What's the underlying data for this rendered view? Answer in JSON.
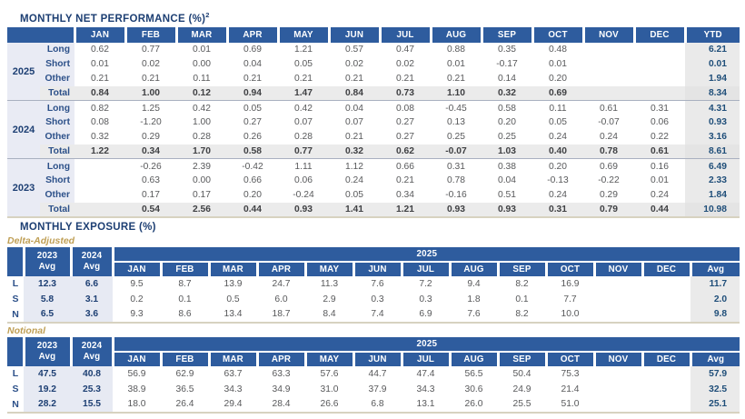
{
  "performance": {
    "title": "MONTHLY NET PERFORMANCE (%)",
    "title_sup": "2",
    "months": [
      "JAN",
      "FEB",
      "MAR",
      "APR",
      "MAY",
      "JUN",
      "JUL",
      "AUG",
      "SEP",
      "OCT",
      "NOV",
      "DEC"
    ],
    "ytd_label": "YTD",
    "groups": [
      {
        "year": "2025",
        "rows": [
          {
            "label": "Long",
            "values": [
              "0.62",
              "0.77",
              "0.01",
              "0.69",
              "1.21",
              "0.57",
              "0.47",
              "0.88",
              "0.35",
              "0.48",
              "",
              ""
            ],
            "ytd": "6.21"
          },
          {
            "label": "Short",
            "values": [
              "0.01",
              "0.02",
              "0.00",
              "0.04",
              "0.05",
              "0.02",
              "0.02",
              "0.01",
              "-0.17",
              "0.01",
              "",
              ""
            ],
            "ytd": "0.01"
          },
          {
            "label": "Other",
            "values": [
              "0.21",
              "0.21",
              "0.11",
              "0.21",
              "0.21",
              "0.21",
              "0.21",
              "0.21",
              "0.14",
              "0.20",
              "",
              ""
            ],
            "ytd": "1.94"
          },
          {
            "label": "Total",
            "values": [
              "0.84",
              "1.00",
              "0.12",
              "0.94",
              "1.47",
              "0.84",
              "0.73",
              "1.10",
              "0.32",
              "0.69",
              "",
              ""
            ],
            "ytd": "8.34"
          }
        ]
      },
      {
        "year": "2024",
        "rows": [
          {
            "label": "Long",
            "values": [
              "0.82",
              "1.25",
              "0.42",
              "0.05",
              "0.42",
              "0.04",
              "0.08",
              "-0.45",
              "0.58",
              "0.11",
              "0.61",
              "0.31"
            ],
            "ytd": "4.31"
          },
          {
            "label": "Short",
            "values": [
              "0.08",
              "-1.20",
              "1.00",
              "0.27",
              "0.07",
              "0.07",
              "0.27",
              "0.13",
              "0.20",
              "0.05",
              "-0.07",
              "0.06"
            ],
            "ytd": "0.93"
          },
          {
            "label": "Other",
            "values": [
              "0.32",
              "0.29",
              "0.28",
              "0.26",
              "0.28",
              "0.21",
              "0.27",
              "0.25",
              "0.25",
              "0.24",
              "0.24",
              "0.22"
            ],
            "ytd": "3.16"
          },
          {
            "label": "Total",
            "values": [
              "1.22",
              "0.34",
              "1.70",
              "0.58",
              "0.77",
              "0.32",
              "0.62",
              "-0.07",
              "1.03",
              "0.40",
              "0.78",
              "0.61"
            ],
            "ytd": "8.61"
          }
        ]
      },
      {
        "year": "2023",
        "rows": [
          {
            "label": "Long",
            "values": [
              "",
              "-0.26",
              "2.39",
              "-0.42",
              "1.11",
              "1.12",
              "0.66",
              "0.31",
              "0.38",
              "0.20",
              "0.69",
              "0.16"
            ],
            "ytd": "6.49"
          },
          {
            "label": "Short",
            "values": [
              "",
              "0.63",
              "0.00",
              "0.66",
              "0.06",
              "0.24",
              "0.21",
              "0.78",
              "0.04",
              "-0.13",
              "-0.22",
              "0.01"
            ],
            "ytd": "2.33"
          },
          {
            "label": "Other",
            "values": [
              "",
              "0.17",
              "0.17",
              "0.20",
              "-0.24",
              "0.05",
              "0.34",
              "-0.16",
              "0.51",
              "0.24",
              "0.29",
              "0.24"
            ],
            "ytd": "1.84"
          },
          {
            "label": "Total",
            "values": [
              "",
              "0.54",
              "2.56",
              "0.44",
              "0.93",
              "1.41",
              "1.21",
              "0.93",
              "0.93",
              "0.31",
              "0.79",
              "0.44"
            ],
            "ytd": "10.98"
          }
        ]
      }
    ]
  },
  "exposure": {
    "title": "MONTHLY EXPOSURE (%)",
    "col_2023": "2023",
    "col_2024": "2024",
    "avg_label": "Avg",
    "banner_year": "2025",
    "months": [
      "JAN",
      "FEB",
      "MAR",
      "APR",
      "MAY",
      "JUN",
      "JUL",
      "AUG",
      "SEP",
      "OCT",
      "NOV",
      "DEC"
    ],
    "subtables": [
      {
        "name": "Delta-Adjusted",
        "rows": [
          {
            "label": "L",
            "avg_2023": "12.3",
            "avg_2024": "6.6",
            "values": [
              "9.5",
              "8.7",
              "13.9",
              "24.7",
              "11.3",
              "7.6",
              "7.2",
              "9.4",
              "8.2",
              "16.9",
              "",
              ""
            ],
            "avg": "11.7"
          },
          {
            "label": "S",
            "avg_2023": "5.8",
            "avg_2024": "3.1",
            "values": [
              "0.2",
              "0.1",
              "0.5",
              "6.0",
              "2.9",
              "0.3",
              "0.3",
              "1.8",
              "0.1",
              "7.7",
              "",
              ""
            ],
            "avg": "2.0"
          },
          {
            "label": "N",
            "avg_2023": "6.5",
            "avg_2024": "3.6",
            "values": [
              "9.3",
              "8.6",
              "13.4",
              "18.7",
              "8.4",
              "7.4",
              "6.9",
              "7.6",
              "8.2",
              "10.0",
              "",
              ""
            ],
            "avg": "9.8"
          }
        ]
      },
      {
        "name": "Notional",
        "rows": [
          {
            "label": "L",
            "avg_2023": "47.5",
            "avg_2024": "40.8",
            "values": [
              "56.9",
              "62.9",
              "63.7",
              "63.3",
              "57.6",
              "44.7",
              "47.4",
              "56.5",
              "50.4",
              "75.3",
              "",
              ""
            ],
            "avg": "57.9"
          },
          {
            "label": "S",
            "avg_2023": "19.2",
            "avg_2024": "25.3",
            "values": [
              "38.9",
              "36.5",
              "34.3",
              "34.9",
              "31.0",
              "37.9",
              "34.3",
              "30.6",
              "24.9",
              "21.4",
              "",
              ""
            ],
            "avg": "32.5"
          },
          {
            "label": "N",
            "avg_2023": "28.2",
            "avg_2024": "15.5",
            "values": [
              "18.0",
              "26.4",
              "29.4",
              "28.4",
              "26.6",
              "6.8",
              "13.1",
              "26.0",
              "25.5",
              "51.0",
              "",
              ""
            ],
            "avg": "25.1"
          }
        ]
      }
    ]
  },
  "colors": {
    "header_blue": "#2e5c9e",
    "title_navy": "#1d3f73",
    "ytd_navy": "#1f4e79",
    "value_gray": "#58595b",
    "gold_label": "#bf9f55",
    "label_bg": "#e9ebf4",
    "total_bg": "#ebebeb"
  }
}
